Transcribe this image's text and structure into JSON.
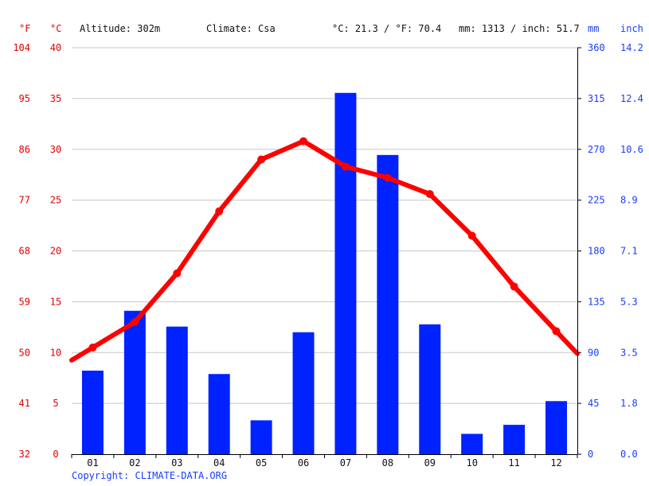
{
  "header": {
    "altitude": "Altitude: 302m",
    "climate": "Climate: Csa",
    "temp_avg": "°C: 21.3 / °F: 70.4",
    "precip_total": "mm: 1313 / inch: 51.7"
  },
  "axes": {
    "left_f_unit": "°F",
    "left_c_unit": "°C",
    "right_mm_unit": "mm",
    "right_inch_unit": "inch",
    "left_f_ticks": [
      "32",
      "41",
      "50",
      "59",
      "68",
      "77",
      "86",
      "95",
      "104"
    ],
    "left_c_ticks": [
      "0",
      "5",
      "10",
      "15",
      "20",
      "25",
      "30",
      "35",
      "40"
    ],
    "right_mm_ticks": [
      "0",
      "45",
      "90",
      "135",
      "180",
      "225",
      "270",
      "315",
      "360"
    ],
    "right_inch_ticks": [
      "0.0",
      "1.8",
      "3.5",
      "5.3",
      "7.1",
      "8.9",
      "10.6",
      "12.4",
      "14.2"
    ]
  },
  "copyright": "Copyright: CLIMATE-DATA.ORG",
  "colors": {
    "temperature": "#ff0000",
    "precipitation": "#0022ff",
    "grid": "#c8c8c8",
    "axis_red": "#e00000",
    "axis_blue": "#1a3cff"
  },
  "chart_data": {
    "type": "bar",
    "categories": [
      "01",
      "02",
      "03",
      "04",
      "05",
      "06",
      "07",
      "08",
      "09",
      "10",
      "11",
      "12"
    ],
    "series": [
      {
        "type": "bar",
        "axis": "right",
        "unit": "mm",
        "values": [
          74,
          127,
          113,
          71,
          30,
          108,
          320,
          265,
          115,
          18,
          26,
          47
        ]
      },
      {
        "type": "line",
        "axis": "left",
        "unit": "°C",
        "values": [
          10.5,
          13.0,
          17.8,
          23.9,
          29.0,
          30.8,
          28.3,
          27.2,
          25.6,
          21.5,
          16.5,
          12.1
        ]
      }
    ],
    "ylim_left_c": [
      0,
      40
    ],
    "ylim_right_mm": [
      0,
      360
    ],
    "grid": true
  }
}
